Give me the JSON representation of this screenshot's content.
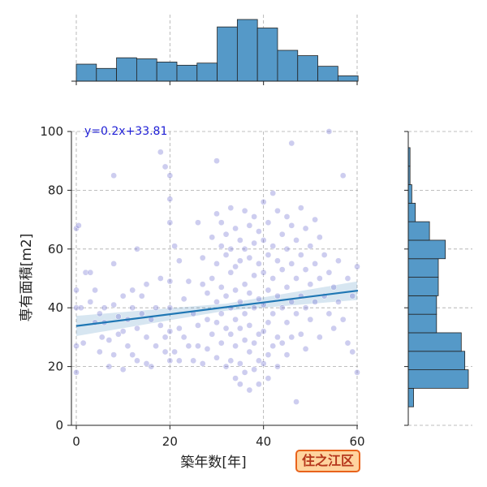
{
  "chart_data": {
    "type": "scatter",
    "xlabel": "築年数[年]",
    "ylabel": "専有面積[m2]",
    "xlim": [
      0,
      60
    ],
    "ylim": [
      0,
      100
    ],
    "x_ticks": [
      "0",
      "20",
      "40",
      "60"
    ],
    "y_ticks": [
      "0",
      "20",
      "40",
      "60",
      "80",
      "100"
    ],
    "grid": true,
    "regression": {
      "equation": "y=0.2x+33.81",
      "slope": 0.2,
      "intercept": 33.81
    },
    "point_color": "#7070d0",
    "line_color": "#1f77b4",
    "hist_color": "#5599c8",
    "x_hist": {
      "bin_edges": [
        0,
        4.3,
        8.6,
        12.9,
        17.2,
        21.5,
        25.8,
        30.1,
        34.4,
        38.7,
        43.0,
        47.3,
        51.6,
        55.9,
        60.2
      ],
      "counts": [
        16,
        12,
        22,
        21,
        18,
        15,
        17,
        51,
        58,
        50,
        29,
        24,
        14,
        5
      ]
    },
    "y_hist": {
      "bin_edges": [
        6.3,
        12.6,
        18.9,
        25.2,
        31.5,
        37.8,
        44.1,
        50.4,
        56.7,
        63.0,
        69.3,
        75.6,
        81.9,
        88.2,
        94.5,
        100.8
      ],
      "counts": [
        3,
        34,
        32,
        30,
        16,
        16,
        17,
        17,
        21,
        12,
        4,
        2,
        1,
        1,
        0
      ]
    },
    "points": [
      [
        0,
        46
      ],
      [
        0,
        40
      ],
      [
        0,
        27
      ],
      [
        0,
        18
      ],
      [
        0,
        67
      ],
      [
        0.5,
        68
      ],
      [
        1,
        40
      ],
      [
        1.5,
        28
      ],
      [
        2,
        52
      ],
      [
        3,
        52
      ],
      [
        3,
        42
      ],
      [
        4,
        46
      ],
      [
        4,
        35
      ],
      [
        5,
        38
      ],
      [
        5,
        25
      ],
      [
        5.5,
        30
      ],
      [
        6,
        40
      ],
      [
        6,
        35
      ],
      [
        7,
        29
      ],
      [
        7,
        20
      ],
      [
        8,
        55
      ],
      [
        8,
        41
      ],
      [
        8,
        24
      ],
      [
        8,
        85
      ],
      [
        9,
        31
      ],
      [
        9,
        37
      ],
      [
        10,
        44
      ],
      [
        10,
        32
      ],
      [
        10,
        19
      ],
      [
        11,
        36
      ],
      [
        11,
        27
      ],
      [
        12,
        40
      ],
      [
        12,
        24
      ],
      [
        12,
        46
      ],
      [
        13,
        33
      ],
      [
        13,
        22
      ],
      [
        13,
        60
      ],
      [
        14,
        44
      ],
      [
        14,
        38
      ],
      [
        15,
        30
      ],
      [
        15,
        48
      ],
      [
        15,
        21
      ],
      [
        16,
        36
      ],
      [
        16,
        20
      ],
      [
        17,
        27
      ],
      [
        17,
        40
      ],
      [
        18,
        93
      ],
      [
        18,
        50
      ],
      [
        18,
        34
      ],
      [
        19,
        30
      ],
      [
        19,
        25
      ],
      [
        19,
        88
      ],
      [
        20,
        77
      ],
      [
        20,
        85
      ],
      [
        20,
        69
      ],
      [
        20,
        49
      ],
      [
        20,
        40
      ],
      [
        20,
        22
      ],
      [
        20,
        32
      ],
      [
        21,
        61
      ],
      [
        21,
        25
      ],
      [
        22,
        56
      ],
      [
        22,
        33
      ],
      [
        22,
        22
      ],
      [
        23,
        43
      ],
      [
        23,
        30
      ],
      [
        24,
        27
      ],
      [
        24,
        49
      ],
      [
        25,
        38
      ],
      [
        25,
        22
      ],
      [
        26,
        69
      ],
      [
        26,
        34
      ],
      [
        26,
        27
      ],
      [
        27,
        21
      ],
      [
        27,
        48
      ],
      [
        27,
        57
      ],
      [
        28,
        36
      ],
      [
        28,
        26
      ],
      [
        28,
        45
      ],
      [
        29,
        50
      ],
      [
        29,
        31
      ],
      [
        29,
        64
      ],
      [
        30,
        90
      ],
      [
        30,
        55
      ],
      [
        30,
        42
      ],
      [
        30,
        35
      ],
      [
        30,
        23
      ],
      [
        30,
        72
      ],
      [
        31,
        69
      ],
      [
        31,
        61
      ],
      [
        31,
        47
      ],
      [
        31,
        38
      ],
      [
        31,
        28
      ],
      [
        32,
        65
      ],
      [
        32,
        58
      ],
      [
        32,
        44
      ],
      [
        32,
        33
      ],
      [
        32,
        20
      ],
      [
        33,
        74
      ],
      [
        33,
        60
      ],
      [
        33,
        52
      ],
      [
        33,
        40
      ],
      [
        33,
        31
      ],
      [
        33,
        22
      ],
      [
        34,
        67
      ],
      [
        34,
        54
      ],
      [
        34,
        46
      ],
      [
        34,
        36
      ],
      [
        34,
        27
      ],
      [
        34,
        16
      ],
      [
        35,
        63
      ],
      [
        35,
        56
      ],
      [
        35,
        42
      ],
      [
        35,
        33
      ],
      [
        35,
        21
      ],
      [
        35,
        14
      ],
      [
        36,
        73
      ],
      [
        36,
        60
      ],
      [
        36,
        48
      ],
      [
        36,
        38
      ],
      [
        36,
        29
      ],
      [
        36,
        18
      ],
      [
        37,
        68
      ],
      [
        37,
        57
      ],
      [
        37,
        45
      ],
      [
        37,
        34
      ],
      [
        37,
        25
      ],
      [
        37,
        12
      ],
      [
        38,
        71
      ],
      [
        38,
        62
      ],
      [
        38,
        51
      ],
      [
        38,
        40
      ],
      [
        38,
        28
      ],
      [
        38,
        19
      ],
      [
        39,
        66
      ],
      [
        39,
        55
      ],
      [
        39,
        43
      ],
      [
        39,
        31
      ],
      [
        39,
        22
      ],
      [
        39,
        14
      ],
      [
        40,
        76
      ],
      [
        40,
        63
      ],
      [
        40,
        52
      ],
      [
        40,
        41
      ],
      [
        40,
        32
      ],
      [
        40,
        21
      ],
      [
        41,
        69
      ],
      [
        41,
        58
      ],
      [
        41,
        46
      ],
      [
        41,
        35
      ],
      [
        41,
        24
      ],
      [
        41,
        16
      ],
      [
        42,
        79
      ],
      [
        42,
        61
      ],
      [
        42,
        50
      ],
      [
        42,
        38
      ],
      [
        42,
        27
      ],
      [
        43,
        73
      ],
      [
        43,
        56
      ],
      [
        43,
        44
      ],
      [
        43,
        30
      ],
      [
        43,
        20
      ],
      [
        44,
        65
      ],
      [
        44,
        53
      ],
      [
        44,
        40
      ],
      [
        44,
        28
      ],
      [
        45,
        71
      ],
      [
        45,
        60
      ],
      [
        45,
        47
      ],
      [
        45,
        35
      ],
      [
        45,
        24
      ],
      [
        46,
        96
      ],
      [
        46,
        68
      ],
      [
        46,
        55
      ],
      [
        46,
        42
      ],
      [
        46,
        30
      ],
      [
        47,
        63
      ],
      [
        47,
        50
      ],
      [
        47,
        38
      ],
      [
        47,
        8
      ],
      [
        48,
        74
      ],
      [
        48,
        58
      ],
      [
        48,
        44
      ],
      [
        48,
        31
      ],
      [
        49,
        67
      ],
      [
        49,
        53
      ],
      [
        49,
        40
      ],
      [
        49,
        26
      ],
      [
        50,
        61
      ],
      [
        50,
        48
      ],
      [
        50,
        36
      ],
      [
        51,
        70
      ],
      [
        51,
        55
      ],
      [
        51,
        42
      ],
      [
        52,
        64
      ],
      [
        52,
        50
      ],
      [
        52,
        30
      ],
      [
        53,
        58
      ],
      [
        53,
        44
      ],
      [
        54,
        100
      ],
      [
        54,
        52
      ],
      [
        54,
        38
      ],
      [
        55,
        47
      ],
      [
        55,
        33
      ],
      [
        56,
        56
      ],
      [
        56,
        42
      ],
      [
        57,
        85
      ],
      [
        57,
        36
      ],
      [
        58,
        50
      ],
      [
        58,
        28
      ],
      [
        59,
        44
      ],
      [
        59,
        25
      ],
      [
        60,
        54
      ],
      [
        60,
        18
      ]
    ]
  },
  "badge": {
    "label": "住之江区"
  }
}
